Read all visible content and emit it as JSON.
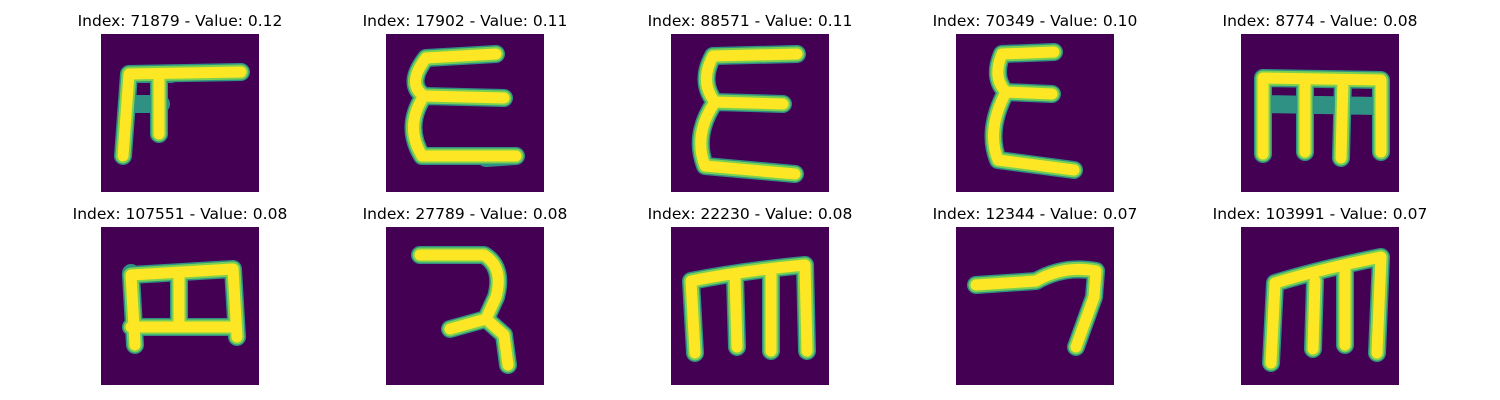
{
  "colors": {
    "background": "#440154",
    "stroke_core": "#fde725",
    "stroke_edge": "#2ea08a"
  },
  "panels": [
    {
      "title": "Index: 71879 - Value: 0.12"
    },
    {
      "title": "Index: 17902 - Value: 0.11"
    },
    {
      "title": "Index: 88571 - Value: 0.11"
    },
    {
      "title": "Index: 70349 - Value: 0.10"
    },
    {
      "title": "Index: 8774 - Value: 0.08"
    },
    {
      "title": "Index: 107551 - Value: 0.08"
    },
    {
      "title": "Index: 27789 - Value: 0.08"
    },
    {
      "title": "Index: 22230 - Value: 0.08"
    },
    {
      "title": "Index: 12344 - Value: 0.07"
    },
    {
      "title": "Index: 103991 - Value: 0.07"
    }
  ]
}
